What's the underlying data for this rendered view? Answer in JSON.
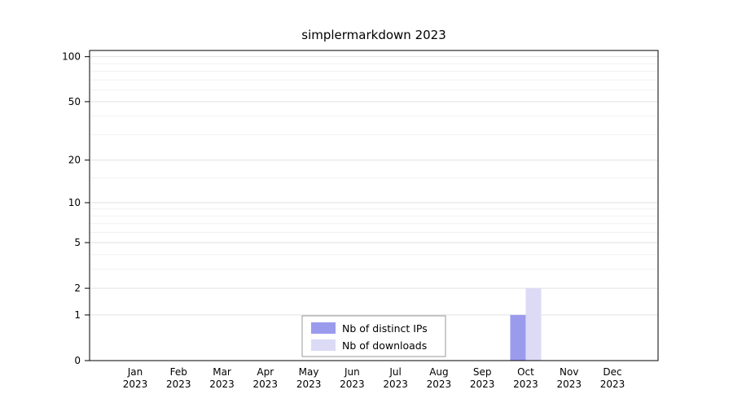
{
  "title": "simplermarkdown 2023",
  "chart_data": {
    "type": "bar",
    "title": "simplermarkdown 2023",
    "categories": [
      "Jan",
      "Feb",
      "Mar",
      "Apr",
      "May",
      "Jun",
      "Jul",
      "Aug",
      "Sep",
      "Oct",
      "Nov",
      "Dec"
    ],
    "year_label": "2023",
    "series": [
      {
        "name": "Nb of distinct IPs",
        "color": "#9b9bee",
        "values": [
          0,
          0,
          0,
          0,
          0,
          0,
          0,
          0,
          0,
          1,
          0,
          0
        ]
      },
      {
        "name": "Nb of downloads",
        "color": "#dbdbf6",
        "values": [
          0,
          0,
          0,
          0,
          0,
          0,
          0,
          0,
          0,
          2,
          0,
          0
        ]
      }
    ],
    "y_scale": "log10(1+y)",
    "y_ticks": [
      0,
      1,
      2,
      5,
      10,
      20,
      50,
      100
    ],
    "y_minor_ticks": [
      3,
      4,
      6,
      7,
      8,
      9,
      15,
      30,
      40,
      60,
      70,
      80,
      90
    ],
    "ylim": [
      0,
      110
    ],
    "grid": true,
    "legend_position": "bottom-center",
    "colors": {
      "axis": "#000000",
      "grid_major": "#e2e2e2",
      "grid_minor": "#f1f1f1",
      "legend_border": "#9a9a9a",
      "legend_bg": "#ffffff"
    }
  }
}
